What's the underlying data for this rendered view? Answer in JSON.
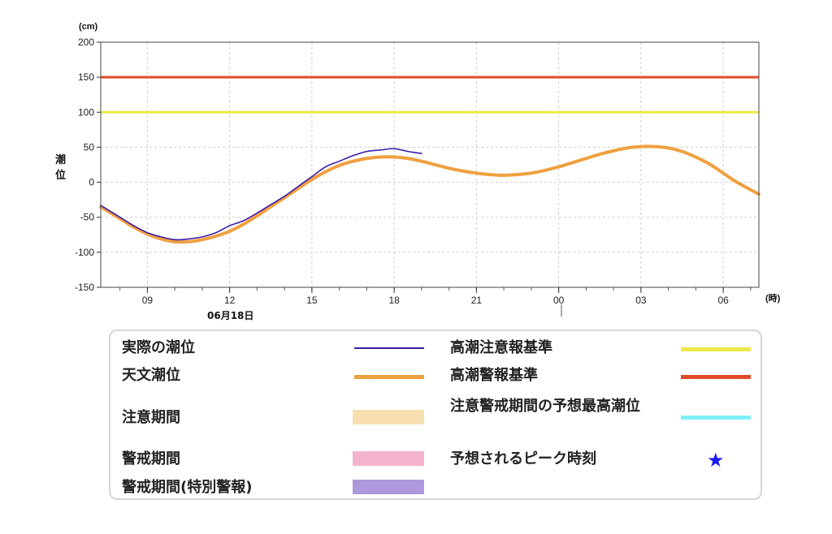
{
  "chart_data": {
    "type": "line",
    "y_unit": "(cm)",
    "x_unit": "(時)",
    "ylabel": "潮位",
    "date_label": "06月18日",
    "ylim": [
      -150,
      200
    ],
    "yticks": [
      200,
      150,
      100,
      50,
      0,
      -50,
      -100,
      -150
    ],
    "xlim_hours": [
      7.3,
      31.3
    ],
    "xticks": [
      {
        "hour": 9,
        "label": "09"
      },
      {
        "hour": 12,
        "label": "12"
      },
      {
        "hour": 15,
        "label": "15"
      },
      {
        "hour": 18,
        "label": "18"
      },
      {
        "hour": 21,
        "label": "21"
      },
      {
        "hour": 24,
        "label": "00"
      },
      {
        "hour": 27,
        "label": "03"
      },
      {
        "hour": 30,
        "label": "06"
      }
    ],
    "thresholds": [
      {
        "name": "高潮警報基準",
        "value": 150,
        "color": "#e04a2a"
      },
      {
        "name": "高潮注意報基準",
        "value": 100,
        "color": "#ece84a"
      }
    ],
    "series": [
      {
        "name": "天文潮位",
        "color": "#efa040",
        "x": [
          7.3,
          8.0,
          8.5,
          9.0,
          9.5,
          10.0,
          10.5,
          11.0,
          11.5,
          12.0,
          12.5,
          13.0,
          13.5,
          14.0,
          14.5,
          15.0,
          15.5,
          16.0,
          16.5,
          17.0,
          17.5,
          18.0,
          18.5,
          19.0,
          19.5,
          20.0,
          20.5,
          21.0,
          21.5,
          22.0,
          22.5,
          23.0,
          23.5,
          24.0,
          24.5,
          25.0,
          25.5,
          26.0,
          26.5,
          27.0,
          27.5,
          28.0,
          28.5,
          29.0,
          29.5,
          30.0,
          30.5,
          31.3
        ],
        "values": [
          -35,
          -52,
          -64,
          -74,
          -81,
          -85,
          -85,
          -82,
          -77,
          -70,
          -60,
          -48,
          -35,
          -22,
          -9,
          4,
          15,
          24,
          30,
          34,
          36,
          36,
          34,
          30,
          25,
          20,
          16,
          13,
          11,
          10,
          11,
          13,
          17,
          22,
          28,
          34,
          40,
          45,
          49,
          51,
          51,
          49,
          44,
          36,
          26,
          13,
          0,
          -17
        ]
      },
      {
        "name": "実際の潮位",
        "color": "#3a1aa8",
        "x": [
          7.3,
          8.0,
          8.5,
          9.0,
          9.5,
          10.0,
          10.5,
          11.0,
          11.5,
          12.0,
          12.5,
          13.0,
          13.5,
          14.0,
          14.5,
          15.0,
          15.5,
          16.0,
          16.5,
          17.0,
          17.5,
          18.0,
          18.5,
          19.0
        ],
        "values": [
          -33,
          -50,
          -62,
          -72,
          -78,
          -82,
          -81,
          -78,
          -72,
          -62,
          -55,
          -44,
          -32,
          -20,
          -6,
          8,
          22,
          30,
          38,
          44,
          46,
          48,
          44,
          41
        ]
      }
    ]
  },
  "legend": {
    "left": [
      {
        "label": "実際の潮位",
        "kind": "line",
        "color": "#3a1aa8"
      },
      {
        "label": "天文潮位",
        "kind": "line",
        "color": "#efa040"
      },
      {
        "label": "注意期間",
        "kind": "band",
        "color": "#f8dfb0"
      },
      {
        "label": "警戒期間",
        "kind": "band",
        "color": "#f3b3cc"
      },
      {
        "label": "警戒期間(特別警報)",
        "kind": "band",
        "color": "#ad98db"
      }
    ],
    "right": [
      {
        "label": "高潮注意報基準",
        "kind": "line",
        "color": "#ece84a"
      },
      {
        "label": "高潮警報基準",
        "kind": "line",
        "color": "#e04a2a"
      },
      {
        "label": "注意警戒期間の予想最高潮位",
        "kind": "line",
        "color": "#7df0f8"
      },
      {
        "label": "予想されるピーク時刻",
        "kind": "star",
        "symbol": "★",
        "color": "#1a1aee"
      }
    ]
  }
}
